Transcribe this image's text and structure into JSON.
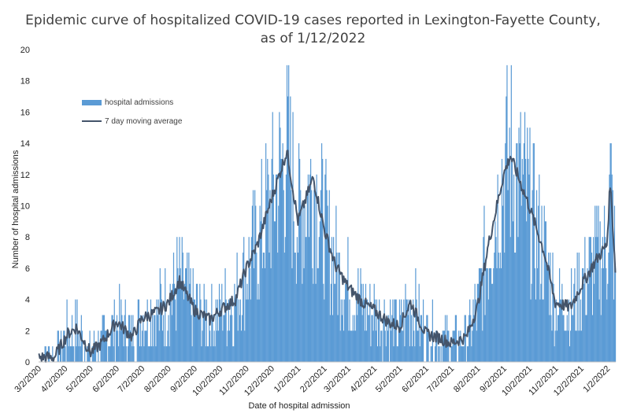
{
  "chart_data": {
    "type": "bar",
    "title": "Epidemic curve of hospitalized COVID-19 cases reported in Lexington-Fayette County,",
    "title_line2": "as of 1/12/2022",
    "xlabel": "Date of hospital admission",
    "ylabel": "Number of hospital admissions",
    "ylim": [
      0,
      20
    ],
    "y_ticks": [
      0,
      2,
      4,
      6,
      8,
      10,
      12,
      14,
      16,
      18,
      20
    ],
    "x_tick_labels": [
      "3/2/2020",
      "4/2/2020",
      "5/2/2020",
      "6/2/2020",
      "7/2/2020",
      "8/2/2020",
      "9/2/2020",
      "10/2/2020",
      "11/2/2020",
      "12/2/2020",
      "1/2/2021",
      "2/2/2021",
      "3/2/2021",
      "4/2/2021",
      "5/2/2021",
      "6/2/2021",
      "7/2/2021",
      "8/2/2021",
      "9/2/2021",
      "10/2/2021",
      "11/2/2021",
      "12/2/2021",
      "1/2/2022"
    ],
    "x_start": "3/2/2020",
    "x_end": "1/12/2022",
    "grid": false,
    "legend_position": "upper-left",
    "series": [
      {
        "name": "hospital admissions",
        "kind": "bar",
        "color": "#5b9bd5"
      },
      {
        "name": "7 day moving average",
        "kind": "line",
        "color": "#44546a"
      }
    ],
    "moving_average_curve": [
      [
        "3/2/2020",
        0.3
      ],
      [
        "3/20/2020",
        0.3
      ],
      [
        "4/5/2020",
        1.8
      ],
      [
        "4/15/2020",
        2.2
      ],
      [
        "5/2/2020",
        0.6
      ],
      [
        "5/15/2020",
        1.2
      ],
      [
        "6/2/2020",
        2.6
      ],
      [
        "6/20/2020",
        1.6
      ],
      [
        "7/2/2020",
        2.8
      ],
      [
        "7/20/2020",
        3.2
      ],
      [
        "8/2/2020",
        3.8
      ],
      [
        "8/15/2020",
        5.2
      ],
      [
        "9/2/2020",
        3.3
      ],
      [
        "9/20/2020",
        2.7
      ],
      [
        "10/2/2020",
        3.3
      ],
      [
        "10/20/2020",
        4.0
      ],
      [
        "11/2/2020",
        6.0
      ],
      [
        "11/15/2020",
        7.5
      ],
      [
        "12/2/2020",
        10.5
      ],
      [
        "12/20/2020",
        13.5
      ],
      [
        "1/2/2021",
        9.0
      ],
      [
        "1/20/2021",
        11.8
      ],
      [
        "2/2/2021",
        8.5
      ],
      [
        "2/15/2021",
        6.2
      ],
      [
        "3/2/2021",
        4.8
      ],
      [
        "3/20/2021",
        3.8
      ],
      [
        "4/2/2021",
        3.3
      ],
      [
        "4/20/2021",
        2.5
      ],
      [
        "5/2/2021",
        2.3
      ],
      [
        "5/15/2021",
        3.8
      ],
      [
        "6/2/2021",
        1.8
      ],
      [
        "6/20/2021",
        1.5
      ],
      [
        "7/2/2021",
        1.2
      ],
      [
        "7/20/2021",
        1.6
      ],
      [
        "8/2/2021",
        3.5
      ],
      [
        "8/15/2021",
        7.5
      ],
      [
        "9/2/2021",
        12.0
      ],
      [
        "9/10/2021",
        13.2
      ],
      [
        "10/2/2021",
        10.0
      ],
      [
        "10/20/2021",
        7.0
      ],
      [
        "11/2/2021",
        3.8
      ],
      [
        "11/20/2021",
        3.5
      ],
      [
        "12/2/2021",
        4.8
      ],
      [
        "12/20/2021",
        6.5
      ],
      [
        "1/2/2022",
        7.5
      ],
      [
        "1/6/2022",
        11.5
      ],
      [
        "1/12/2022",
        6.0
      ]
    ]
  }
}
